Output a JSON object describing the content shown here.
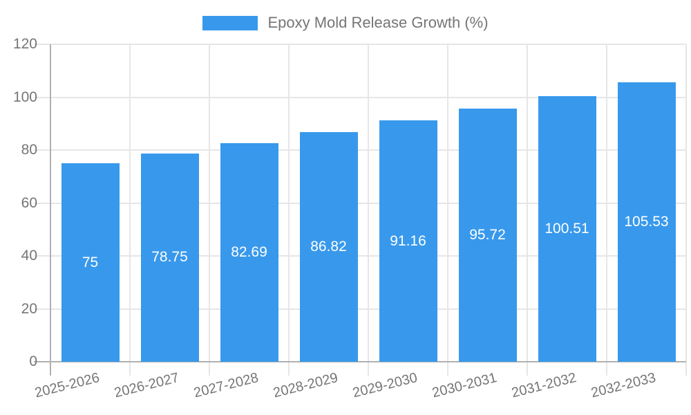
{
  "chart_data": {
    "type": "bar",
    "title": "",
    "legend": {
      "label": "Epoxy Mold Release Growth (%)",
      "position": "top-center"
    },
    "categories": [
      "2025-2026",
      "2026-2027",
      "2027-2028",
      "2028-2029",
      "2029-2030",
      "2030-2031",
      "2031-2032",
      "2032-2033"
    ],
    "series": [
      {
        "name": "Epoxy Mold Release Growth (%)",
        "values": [
          75,
          78.75,
          82.69,
          86.82,
          91.16,
          95.72,
          100.51,
          105.53
        ],
        "labels": [
          "75",
          "78.75",
          "82.69",
          "86.82",
          "91.16",
          "95.72",
          "100.51",
          "105.53"
        ]
      }
    ],
    "xlabel": "",
    "ylabel": "",
    "ylim": [
      0,
      120
    ],
    "yticks": [
      0,
      20,
      40,
      60,
      80,
      100,
      120
    ],
    "grid": true,
    "colors": {
      "bar": "#3899ec",
      "grid": "#e6e6e6",
      "axis": "#b0b0b0",
      "text": "#757575",
      "bar_label": "#ffffff"
    }
  }
}
